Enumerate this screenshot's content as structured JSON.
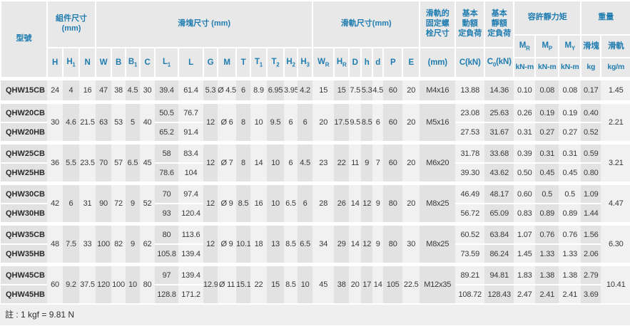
{
  "note": "註 : 1 kgf = 9.81 N",
  "colors": {
    "header_bg": "#e8e8e8",
    "header_text": "#1f7cb0",
    "stripe_dark": "#e2e2e2",
    "stripe_light": "#f1f1f1",
    "separator": "#ffffff",
    "body_text": "#383838",
    "note_bg": "#efefef"
  },
  "header": {
    "model_label": "型號",
    "groups": [
      {
        "label": "組件尺寸\n(mm)",
        "span": 3,
        "tall": true
      },
      {
        "label": "滑塊尺寸 (mm)",
        "span": 13,
        "tall": true
      },
      {
        "label": "滑軌尺寸(mm)",
        "span": 7,
        "tall": true
      },
      {
        "label": "滑軌的\n固定螺\n栓尺寸",
        "span": 1,
        "tall": true
      },
      {
        "label": "基本\n動額\n定負荷",
        "span": 1,
        "tall": true
      },
      {
        "label": "基本\n靜額\n定負荷",
        "span": 1,
        "tall": true
      },
      {
        "label": "容許靜力矩",
        "span": 3,
        "tall": false
      },
      {
        "label": "重量",
        "span": 2,
        "tall": false
      }
    ],
    "columns": [
      {
        "key": "H",
        "sym": "H"
      },
      {
        "key": "H1",
        "sym": "H",
        "sub": "1"
      },
      {
        "key": "N",
        "sym": "N"
      },
      {
        "key": "W",
        "sym": "W"
      },
      {
        "key": "B",
        "sym": "B"
      },
      {
        "key": "B1",
        "sym": "B",
        "sub": "1"
      },
      {
        "key": "C",
        "sym": "C"
      },
      {
        "key": "L1",
        "sym": "L",
        "sub": "1"
      },
      {
        "key": "L",
        "sym": "L"
      },
      {
        "key": "G",
        "sym": "G"
      },
      {
        "key": "M",
        "sym": "M"
      },
      {
        "key": "T",
        "sym": "T"
      },
      {
        "key": "T1",
        "sym": "T",
        "sub": "1"
      },
      {
        "key": "T2",
        "sym": "T",
        "sub": "2"
      },
      {
        "key": "H2",
        "sym": "H",
        "sub": "2"
      },
      {
        "key": "H3",
        "sym": "H",
        "sub": "3"
      },
      {
        "key": "WR",
        "sym": "W",
        "sub": "R"
      },
      {
        "key": "HR",
        "sym": "H",
        "sub": "R"
      },
      {
        "key": "D",
        "sym": "D"
      },
      {
        "key": "h",
        "sym": "h"
      },
      {
        "key": "d",
        "sym": "d"
      },
      {
        "key": "P",
        "sym": "P"
      },
      {
        "key": "E",
        "sym": "E"
      },
      {
        "key": "mm",
        "sym": "(mm)"
      },
      {
        "key": "C",
        "sym": "C(kN)"
      },
      {
        "key": "C0",
        "sym": "C",
        "sub": "0",
        "suffix": "(kN)"
      },
      {
        "key": "MR",
        "sym": "M",
        "sub": "R",
        "unit": "kN-m"
      },
      {
        "key": "MP",
        "sym": "M",
        "sub": "P",
        "unit": "kN-m"
      },
      {
        "key": "MY",
        "sym": "M",
        "sub": "Y",
        "unit": "kN-m"
      },
      {
        "key": "kgBlock",
        "sym": "滑塊",
        "unit": "kg"
      },
      {
        "key": "kgRail",
        "sym": "滑軌",
        "unit": "kg/m"
      }
    ]
  },
  "table": {
    "groups": [
      {
        "models": [
          "QHW15CB"
        ],
        "assembly": [
          "24",
          "4",
          "16",
          "47",
          "38",
          "4.5",
          "30"
        ],
        "block": [
          "5.3",
          "Ø 4.5",
          "6",
          "8.9",
          "6.95",
          "3.95",
          "4.2"
        ],
        "rail": [
          "15",
          "15",
          "7.5",
          "5.3",
          "4.5",
          "60",
          "20"
        ],
        "bolt": "M4x16",
        "rail_weight": "1.45",
        "rows": [
          {
            "L1": "39.4",
            "L": "61.4",
            "C": "13.88",
            "C0": "14.36",
            "MR": "0.10",
            "MP": "0.08",
            "MY": "0.08",
            "kg": "0.17"
          }
        ]
      },
      {
        "models": [
          "QHW20CB",
          "QHW20HB"
        ],
        "assembly": [
          "30",
          "4.6",
          "21.5",
          "63",
          "53",
          "5",
          "40"
        ],
        "block": [
          "12",
          "Ø 6",
          "8",
          "10",
          "9.5",
          "6",
          "6"
        ],
        "rail": [
          "20",
          "17.5",
          "9.5",
          "8.5",
          "6",
          "60",
          "20"
        ],
        "bolt": "M5x16",
        "rail_weight": "2.21",
        "rows": [
          {
            "L1": "50.5",
            "L": "76.7",
            "C": "23.08",
            "C0": "25.63",
            "MR": "0.26",
            "MP": "0.19",
            "MY": "0.19",
            "kg": "0.40"
          },
          {
            "L1": "65.2",
            "L": "91.4",
            "C": "27.53",
            "C0": "31.67",
            "MR": "0.31",
            "MP": "0.27",
            "MY": "0.27",
            "kg": "0.52"
          }
        ]
      },
      {
        "models": [
          "QHW25CB",
          "QHW25HB"
        ],
        "assembly": [
          "36",
          "5.5",
          "23.5",
          "70",
          "57",
          "6.5",
          "45"
        ],
        "block": [
          "12",
          "Ø 7",
          "8",
          "14",
          "10",
          "6",
          "4.5"
        ],
        "rail": [
          "23",
          "22",
          "11",
          "9",
          "7",
          "60",
          "20"
        ],
        "bolt": "M6x20",
        "rail_weight": "3.21",
        "rows": [
          {
            "L1": "58",
            "L": "83.4",
            "C": "31.78",
            "C0": "33.68",
            "MR": "0.39",
            "MP": "0.31",
            "MY": "0.31",
            "kg": "0.59"
          },
          {
            "L1": "78.6",
            "L": "104",
            "C": "39.30",
            "C0": "43.62",
            "MR": "0.50",
            "MP": "0.45",
            "MY": "0.45",
            "kg": "0.80"
          }
        ]
      },
      {
        "models": [
          "QHW30CB",
          "QHW30HB"
        ],
        "assembly": [
          "42",
          "6",
          "31",
          "90",
          "72",
          "9",
          "52"
        ],
        "block": [
          "12",
          "Ø 9",
          "8.5",
          "16",
          "10",
          "6.5",
          "6"
        ],
        "rail": [
          "28",
          "26",
          "14",
          "12",
          "9",
          "80",
          "20"
        ],
        "bolt": "M8x25",
        "rail_weight": "4.47",
        "rows": [
          {
            "L1": "70",
            "L": "97.4",
            "C": "46.49",
            "C0": "48.17",
            "MR": "0.60",
            "MP": "0.5",
            "MY": "0.5",
            "kg": "1.09"
          },
          {
            "L1": "93",
            "L": "120.4",
            "C": "56.72",
            "C0": "65.09",
            "MR": "0.83",
            "MP": "0.89",
            "MY": "0.89",
            "kg": "1.44"
          }
        ]
      },
      {
        "models": [
          "QHW35CB",
          "QHW35HB"
        ],
        "assembly": [
          "48",
          "7.5",
          "33",
          "100",
          "82",
          "9",
          "62"
        ],
        "block": [
          "12",
          "Ø 9",
          "10.1",
          "18",
          "13",
          "8.5",
          "6.5"
        ],
        "rail": [
          "34",
          "29",
          "14",
          "12",
          "9",
          "80",
          "30"
        ],
        "bolt": "M8x25",
        "rail_weight": "6.30",
        "rows": [
          {
            "L1": "80",
            "L": "113.6",
            "C": "60.52",
            "C0": "63.84",
            "MR": "1.07",
            "MP": "0.76",
            "MY": "0.76",
            "kg": "1.56"
          },
          {
            "L1": "105.8",
            "L": "139.4",
            "C": "73.59",
            "C0": "86.24",
            "MR": "1.45",
            "MP": "1.33",
            "MY": "1.33",
            "kg": "2.06"
          }
        ]
      },
      {
        "models": [
          "QHW45CB",
          "QHW45HB"
        ],
        "assembly": [
          "60",
          "9.2",
          "37.5",
          "120",
          "100",
          "10",
          "80"
        ],
        "block": [
          "12.9",
          "Ø 11",
          "15.1",
          "22",
          "15",
          "8.5",
          "10"
        ],
        "rail": [
          "45",
          "38",
          "20",
          "17",
          "14",
          "105",
          "22.5"
        ],
        "bolt": "M12x35",
        "rail_weight": "10.41",
        "rows": [
          {
            "L1": "97",
            "L": "139.4",
            "C": "89.21",
            "C0": "94.81",
            "MR": "1.83",
            "MP": "1.38",
            "MY": "1.38",
            "kg": "2.79"
          },
          {
            "L1": "128.8",
            "L": "171.2",
            "C": "108.72",
            "C0": "128.43",
            "MR": "2.47",
            "MP": "2.41",
            "MY": "2.41",
            "kg": "3.69"
          }
        ]
      }
    ]
  }
}
